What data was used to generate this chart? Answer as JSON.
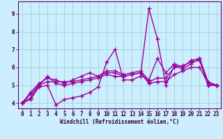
{
  "x": [
    0,
    1,
    2,
    3,
    4,
    5,
    6,
    7,
    8,
    9,
    10,
    11,
    12,
    13,
    14,
    15,
    16,
    17,
    18,
    19,
    20,
    21,
    22,
    23
  ],
  "series": [
    [
      4.0,
      4.2,
      4.9,
      5.0,
      3.9,
      4.2,
      4.3,
      4.4,
      4.6,
      4.9,
      6.3,
      7.0,
      5.3,
      5.3,
      5.5,
      9.3,
      7.6,
      5.0,
      6.1,
      5.9,
      6.2,
      6.5,
      5.0,
      5.0
    ],
    [
      4.0,
      4.3,
      5.0,
      5.5,
      5.1,
      5.0,
      5.1,
      5.2,
      5.3,
      5.4,
      5.6,
      5.5,
      5.5,
      5.6,
      5.7,
      5.1,
      5.2,
      5.2,
      5.6,
      5.8,
      6.0,
      6.0,
      5.1,
      5.0
    ],
    [
      4.0,
      4.5,
      5.0,
      5.2,
      5.2,
      5.2,
      5.2,
      5.3,
      5.4,
      5.5,
      5.7,
      5.7,
      5.5,
      5.6,
      5.7,
      5.2,
      5.4,
      5.4,
      6.0,
      6.1,
      6.3,
      6.4,
      5.0,
      5.0
    ],
    [
      4.0,
      4.6,
      5.1,
      5.4,
      5.3,
      5.1,
      5.3,
      5.5,
      5.7,
      5.5,
      5.8,
      5.8,
      5.6,
      5.7,
      5.8,
      5.3,
      6.5,
      5.7,
      6.2,
      6.0,
      6.4,
      6.5,
      5.2,
      5.0
    ]
  ],
  "line_color": "#990099",
  "bg_color": "#cceeff",
  "grid_color": "#99cccc",
  "xlabel": "Windchill (Refroidissement éolien,°C)",
  "ylim": [
    3.7,
    9.7
  ],
  "xlim": [
    -0.5,
    23.5
  ],
  "yticks": [
    4,
    5,
    6,
    7,
    8,
    9
  ],
  "xticks": [
    0,
    1,
    2,
    3,
    4,
    5,
    6,
    7,
    8,
    9,
    10,
    11,
    12,
    13,
    14,
    15,
    16,
    17,
    18,
    19,
    20,
    21,
    22,
    23
  ],
  "marker": "+",
  "markersize": 4,
  "linewidth": 1.0,
  "tick_color": "#660066",
  "label_color": "#330033"
}
